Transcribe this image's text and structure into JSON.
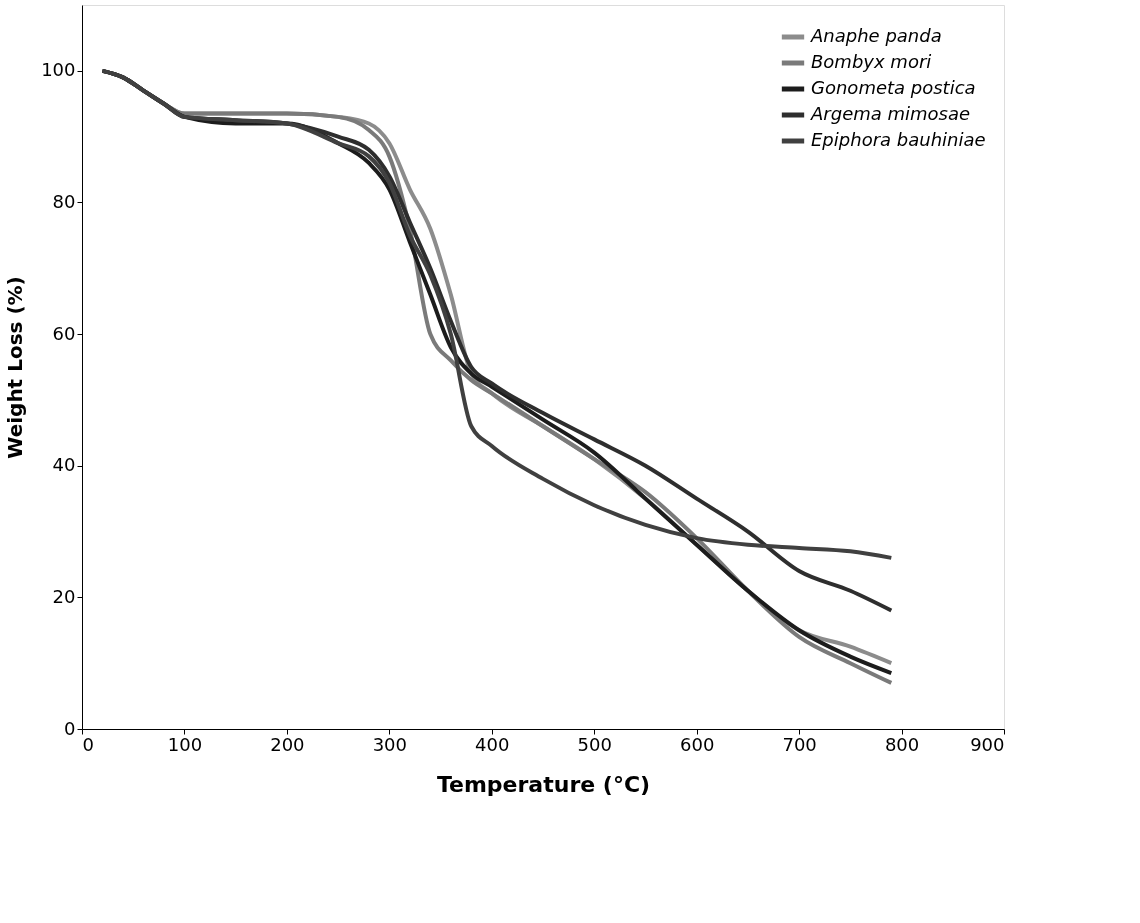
{
  "chart_data": {
    "type": "line",
    "xlabel": "Temperature (°C)",
    "ylabel": "Weight Loss (%)",
    "xlim": [
      0,
      900
    ],
    "xticks": [
      0,
      100,
      200,
      300,
      400,
      500,
      600,
      700,
      800,
      900
    ],
    "ylim": [
      0,
      110
    ],
    "yticks": [
      0,
      20,
      40,
      60,
      80,
      100
    ],
    "grid": false,
    "legend": "top right",
    "marker": "none",
    "line_style": "solid",
    "x": [
      20,
      40,
      60,
      80,
      100,
      150,
      200,
      250,
      280,
      300,
      320,
      340,
      360,
      380,
      400,
      450,
      500,
      550,
      600,
      650,
      700,
      750,
      790
    ],
    "series": [
      {
        "name": "Anaphe panda",
        "color": "#8c8c8c",
        "values": [
          100,
          99,
          97,
          95,
          93.5,
          93.5,
          93.5,
          93,
          92,
          89,
          82,
          76,
          66,
          54,
          51,
          46,
          41,
          35,
          28,
          21,
          15,
          12.5,
          10
        ]
      },
      {
        "name": "Bombyx mori",
        "color": "#7a7a7a",
        "values": [
          100,
          99,
          97,
          95,
          93.5,
          93.5,
          93.5,
          93,
          91,
          87,
          76,
          60,
          56,
          53,
          51,
          46,
          41,
          36,
          29,
          21,
          14,
          10,
          7
        ]
      },
      {
        "name": "Gonometa postica",
        "color": "#1c1c1c",
        "values": [
          100,
          99,
          97,
          95,
          93,
          92,
          92,
          89,
          86,
          82,
          74,
          66,
          58,
          54,
          52,
          47,
          42,
          35,
          28,
          21,
          15,
          11,
          8.5
        ]
      },
      {
        "name": "Argema mimosae",
        "color": "#2e2e2e",
        "values": [
          100,
          99,
          97,
          95,
          93,
          92.5,
          92,
          90,
          88,
          84,
          77,
          70,
          62,
          55,
          52.5,
          48,
          44,
          40,
          35,
          30,
          24,
          21,
          18
        ]
      },
      {
        "name": "Epiphora bauhiniae",
        "color": "#404040",
        "values": [
          100,
          99,
          97,
          95,
          93,
          92.5,
          92,
          89,
          87,
          83,
          75,
          69,
          60,
          46,
          43,
          38,
          34,
          31,
          29,
          28,
          27.5,
          27,
          26
        ]
      }
    ]
  }
}
